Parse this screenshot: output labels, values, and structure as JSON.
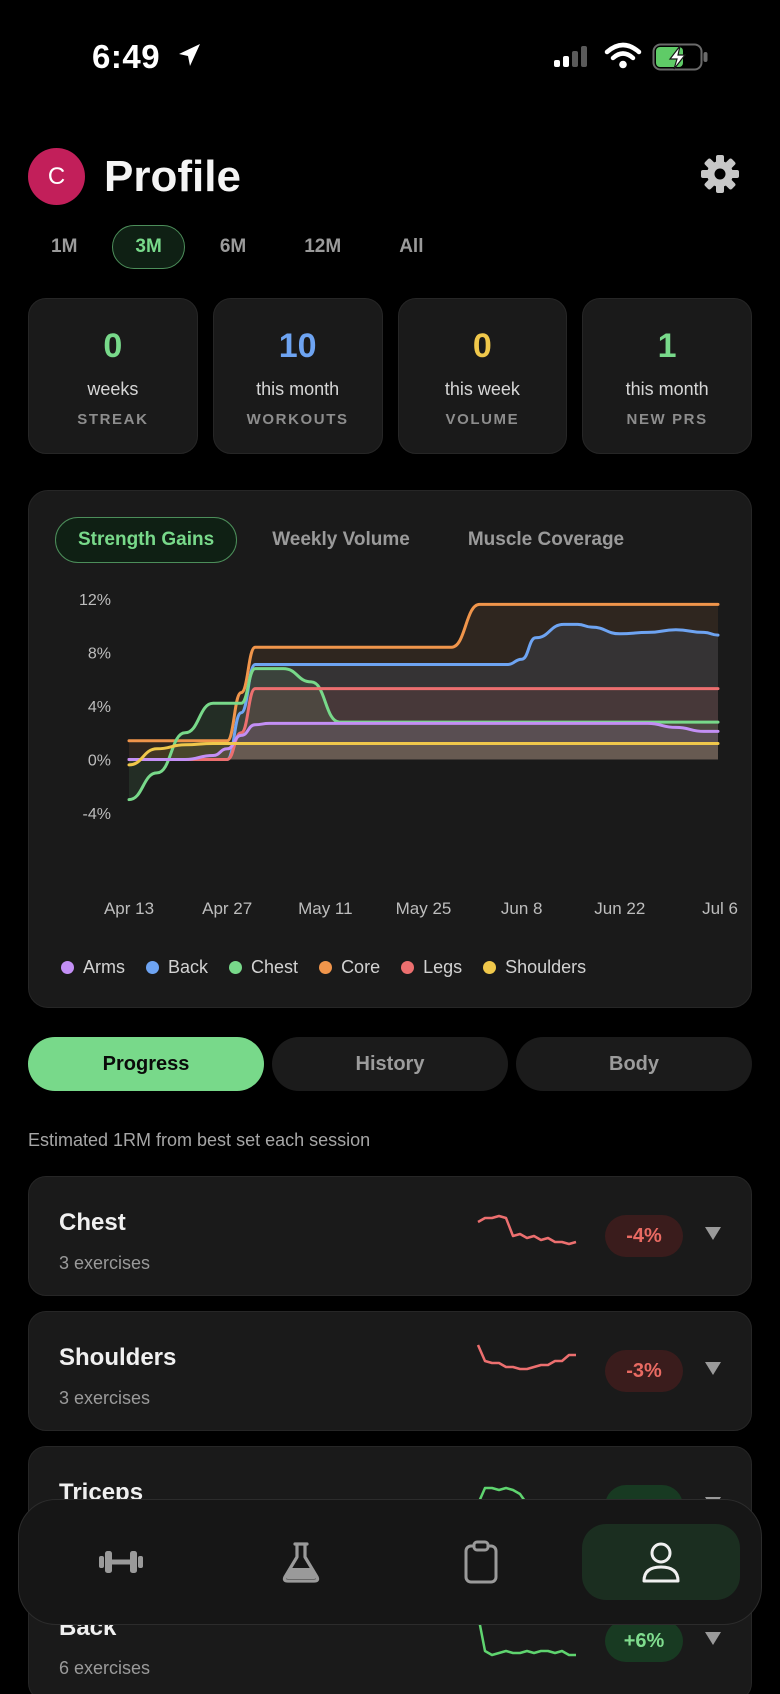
{
  "status": {
    "time": "6:49"
  },
  "header": {
    "avatar_initial": "C",
    "title": "Profile"
  },
  "ranges": [
    {
      "label": "1M",
      "active": false
    },
    {
      "label": "3M",
      "active": true
    },
    {
      "label": "6M",
      "active": false
    },
    {
      "label": "12M",
      "active": false
    },
    {
      "label": "All",
      "active": false
    }
  ],
  "stats": [
    {
      "value": "0",
      "sub": "weeks",
      "label": "STREAK",
      "color": "#78d98a"
    },
    {
      "value": "10",
      "sub": "this month",
      "label": "WORKOUTS",
      "color": "#6ea4f2"
    },
    {
      "value": "0",
      "sub": "this week",
      "label": "VOLUME",
      "color": "#f0c84b"
    },
    {
      "value": "1",
      "sub": "this month",
      "label": "NEW PRS",
      "color": "#78d98a"
    }
  ],
  "chart_tabs": [
    {
      "label": "Strength Gains",
      "active": true
    },
    {
      "label": "Weekly Volume",
      "active": false
    },
    {
      "label": "Muscle Coverage",
      "active": false
    }
  ],
  "chart_data": {
    "type": "line",
    "x": [
      "Apr 13",
      "Apr 17",
      "Apr 21",
      "Apr 25",
      "Apr 27",
      "Apr 29",
      "May 1",
      "May 3",
      "May 5",
      "May 9",
      "May 13",
      "May 17",
      "May 21",
      "May 25",
      "May 29",
      "Jun 2",
      "Jun 6",
      "Jun 8",
      "Jun 10",
      "Jun 14",
      "Jun 16",
      "Jun 18",
      "Jun 22",
      "Jun 26",
      "Jun 30",
      "Jul 4",
      "Jul 6"
    ],
    "x_ticks": [
      "Apr 13",
      "Apr 27",
      "May 11",
      "May 25",
      "Jun 8",
      "Jun 22",
      "Jul 6"
    ],
    "y_ticks": [
      "12%",
      "8%",
      "4%",
      "0%",
      "-4%"
    ],
    "ylim": [
      -4,
      12
    ],
    "series": [
      {
        "name": "Arms",
        "color": "#c38ff5",
        "values": [
          0,
          0,
          0,
          0.3,
          0.8,
          1.8,
          2.6,
          2.7,
          2.7,
          2.7,
          2.7,
          2.7,
          2.7,
          2.7,
          2.7,
          2.7,
          2.7,
          2.7,
          2.7,
          2.7,
          2.7,
          2.7,
          2.7,
          2.7,
          2.4,
          2.1,
          2.1
        ]
      },
      {
        "name": "Back",
        "color": "#6ea4f2",
        "values": [
          0,
          0,
          0,
          0,
          0,
          3.5,
          7.1,
          7.1,
          7.1,
          7.1,
          7.1,
          7.1,
          7.1,
          7.1,
          7.1,
          7.1,
          7.1,
          7.5,
          9.1,
          10.1,
          10.1,
          9.9,
          9.4,
          9.5,
          9.7,
          9.5,
          9.3
        ]
      },
      {
        "name": "Chest",
        "color": "#78d98a",
        "values": [
          -3,
          -1,
          2,
          4.2,
          4.2,
          4.2,
          6.8,
          6.8,
          6.8,
          5.8,
          2.8,
          2.8,
          2.8,
          2.8,
          2.8,
          2.8,
          2.8,
          2.8,
          2.8,
          2.8,
          2.8,
          2.8,
          2.8,
          2.8,
          2.8,
          2.8,
          2.8
        ]
      },
      {
        "name": "Core",
        "color": "#f0954b",
        "values": [
          1.4,
          1.4,
          1.4,
          1.4,
          1.4,
          5,
          8.4,
          8.4,
          8.4,
          8.4,
          8.4,
          8.4,
          8.4,
          8.4,
          8.4,
          11.6,
          11.6,
          11.6,
          11.6,
          11.6,
          11.6,
          11.6,
          11.6,
          11.6,
          11.6,
          11.6,
          11.6
        ]
      },
      {
        "name": "Legs",
        "color": "#ec6f6f",
        "values": [
          0,
          0,
          0,
          0,
          0,
          2,
          5.3,
          5.3,
          5.3,
          5.3,
          5.3,
          5.3,
          5.3,
          5.3,
          5.3,
          5.3,
          5.3,
          5.3,
          5.3,
          5.3,
          5.3,
          5.3,
          5.3,
          5.3,
          5.3,
          5.3,
          5.3
        ]
      },
      {
        "name": "Shoulders",
        "color": "#f0c84b",
        "values": [
          -0.4,
          0.8,
          1.1,
          1.2,
          1.2,
          1.2,
          1.2,
          1.2,
          1.2,
          1.2,
          1.2,
          1.2,
          1.2,
          1.2,
          1.2,
          1.2,
          1.2,
          1.2,
          1.2,
          1.2,
          1.2,
          1.2,
          1.2,
          1.2,
          1.2,
          1.2,
          1.2
        ]
      }
    ],
    "legend": "bottom"
  },
  "segments": [
    {
      "label": "Progress",
      "active": true
    },
    {
      "label": "History",
      "active": false
    },
    {
      "label": "Body",
      "active": false
    }
  ],
  "caption": "Estimated 1RM from best set each session",
  "groups": [
    {
      "name": "Chest",
      "count": "3 exercises",
      "change": "-4%",
      "trend": "neg",
      "spark": [
        8,
        6,
        6,
        5,
        6,
        15,
        14,
        16,
        15,
        17,
        16,
        18,
        18,
        19,
        18
      ]
    },
    {
      "name": "Shoulders",
      "count": "3 exercises",
      "change": "-3%",
      "trend": "neg",
      "spark": [
        2,
        10,
        11,
        11,
        13,
        13,
        14,
        14,
        13,
        12,
        12,
        10,
        10,
        7,
        7
      ]
    },
    {
      "name": "Triceps",
      "count": "",
      "change": "",
      "trend": "pos",
      "spark": [
        14,
        6,
        6,
        7,
        6,
        7,
        9,
        14,
        18,
        19,
        20,
        20,
        20,
        20,
        20
      ]
    },
    {
      "name": "Back",
      "count": "6 exercises",
      "change": "+6%",
      "trend": "pos",
      "spark": [
        2,
        20,
        22,
        21,
        20,
        21,
        21,
        20,
        21,
        20,
        20,
        21,
        20,
        22,
        22
      ]
    }
  ],
  "tabbar": [
    {
      "icon": "dumbbell-icon",
      "active": false
    },
    {
      "icon": "flask-icon",
      "active": false
    },
    {
      "icon": "clipboard-icon",
      "active": false
    },
    {
      "icon": "person-icon",
      "active": true
    }
  ]
}
